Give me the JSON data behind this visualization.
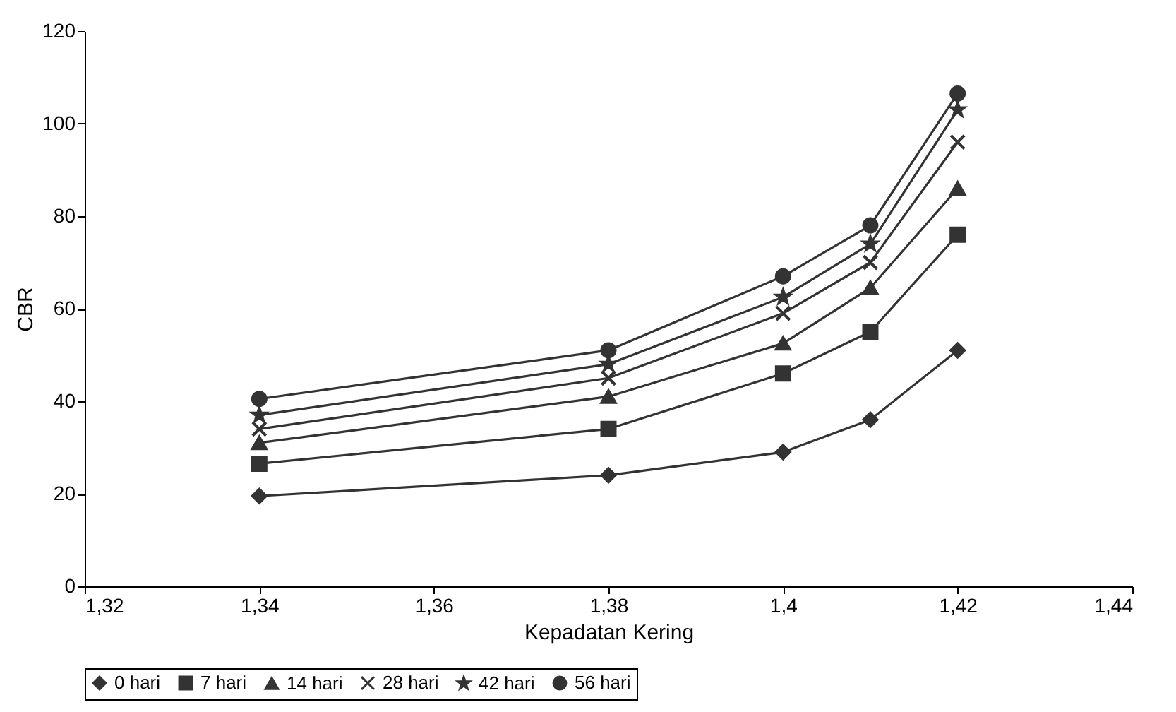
{
  "chart_data": {
    "type": "line",
    "xlabel": "Kepadatan Kering",
    "ylabel": "CBR",
    "x": [
      1.34,
      1.38,
      1.4,
      1.41,
      1.42
    ],
    "series": [
      {
        "name": "0 hari",
        "color": "#333333",
        "marker": "diamond",
        "values": [
          19.5,
          24,
          29,
          36,
          51
        ]
      },
      {
        "name": "7 hari",
        "color": "#333333",
        "marker": "square",
        "values": [
          26.5,
          34,
          46,
          55,
          76
        ]
      },
      {
        "name": "14 hari",
        "color": "#333333",
        "marker": "triangle",
        "values": [
          31,
          41,
          52.5,
          64.5,
          86
        ]
      },
      {
        "name": "28 hari",
        "color": "#333333",
        "marker": "cross",
        "values": [
          34,
          45,
          59,
          70,
          96
        ]
      },
      {
        "name": "42 hari",
        "color": "#333333",
        "marker": "star",
        "values": [
          37,
          48,
          62.5,
          74,
          103
        ]
      },
      {
        "name": "56 hari",
        "color": "#333333",
        "marker": "circle",
        "values": [
          40.5,
          51,
          67,
          78,
          106.5
        ]
      }
    ],
    "xlim": [
      1.32,
      1.44
    ],
    "xticks": [
      {
        "value": 1.32,
        "label": "1,32"
      },
      {
        "value": 1.34,
        "label": "1,34"
      },
      {
        "value": 1.36,
        "label": "1,36"
      },
      {
        "value": 1.38,
        "label": "1,38"
      },
      {
        "value": 1.4,
        "label": "1,4"
      },
      {
        "value": 1.42,
        "label": "1,42"
      },
      {
        "value": 1.44,
        "label": "1,44"
      }
    ],
    "ylim": [
      0,
      120
    ],
    "yticks": [
      0,
      20,
      40,
      60,
      80,
      100,
      120
    ],
    "grid": false,
    "legend": "bottom",
    "line_style": "solid"
  }
}
